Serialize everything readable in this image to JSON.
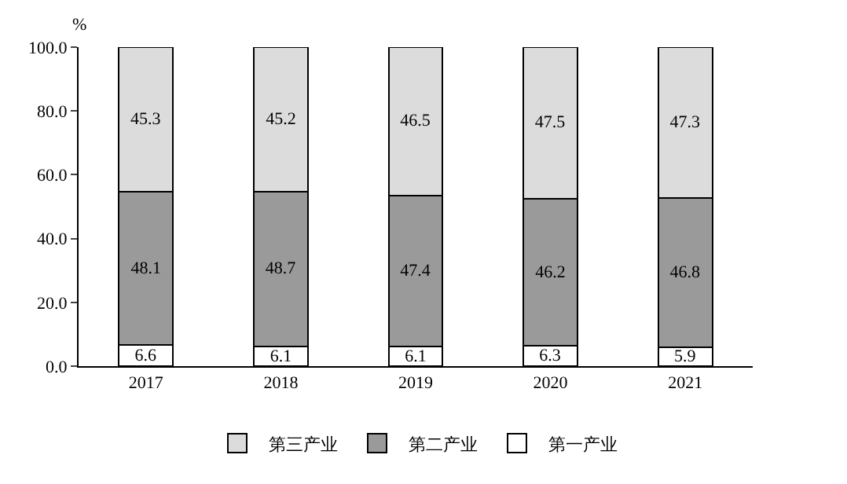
{
  "chart_data": {
    "type": "bar",
    "stacked": true,
    "ylabel": "%",
    "categories": [
      "2017",
      "2018",
      "2019",
      "2020",
      "2021"
    ],
    "series": [
      {
        "name": "第一产业",
        "color": "#ffffff",
        "values": [
          6.6,
          6.1,
          6.1,
          6.3,
          5.9
        ]
      },
      {
        "name": "第二产业",
        "color": "#9a9a9a",
        "values": [
          48.1,
          48.7,
          47.4,
          46.2,
          46.8
        ]
      },
      {
        "name": "第三产业",
        "color": "#dcdcdc",
        "values": [
          45.3,
          45.2,
          46.5,
          47.5,
          47.3
        ]
      }
    ],
    "ylim": [
      0,
      100
    ],
    "yticks": [
      {
        "value": 0,
        "label": "0.0"
      },
      {
        "value": 20,
        "label": "20.0"
      },
      {
        "value": 40,
        "label": "40.0"
      },
      {
        "value": 60,
        "label": "60.0"
      },
      {
        "value": 80,
        "label": "80.0"
      },
      {
        "value": 100,
        "label": "100.0"
      }
    ],
    "data_labels": true,
    "legend": "bottom"
  }
}
